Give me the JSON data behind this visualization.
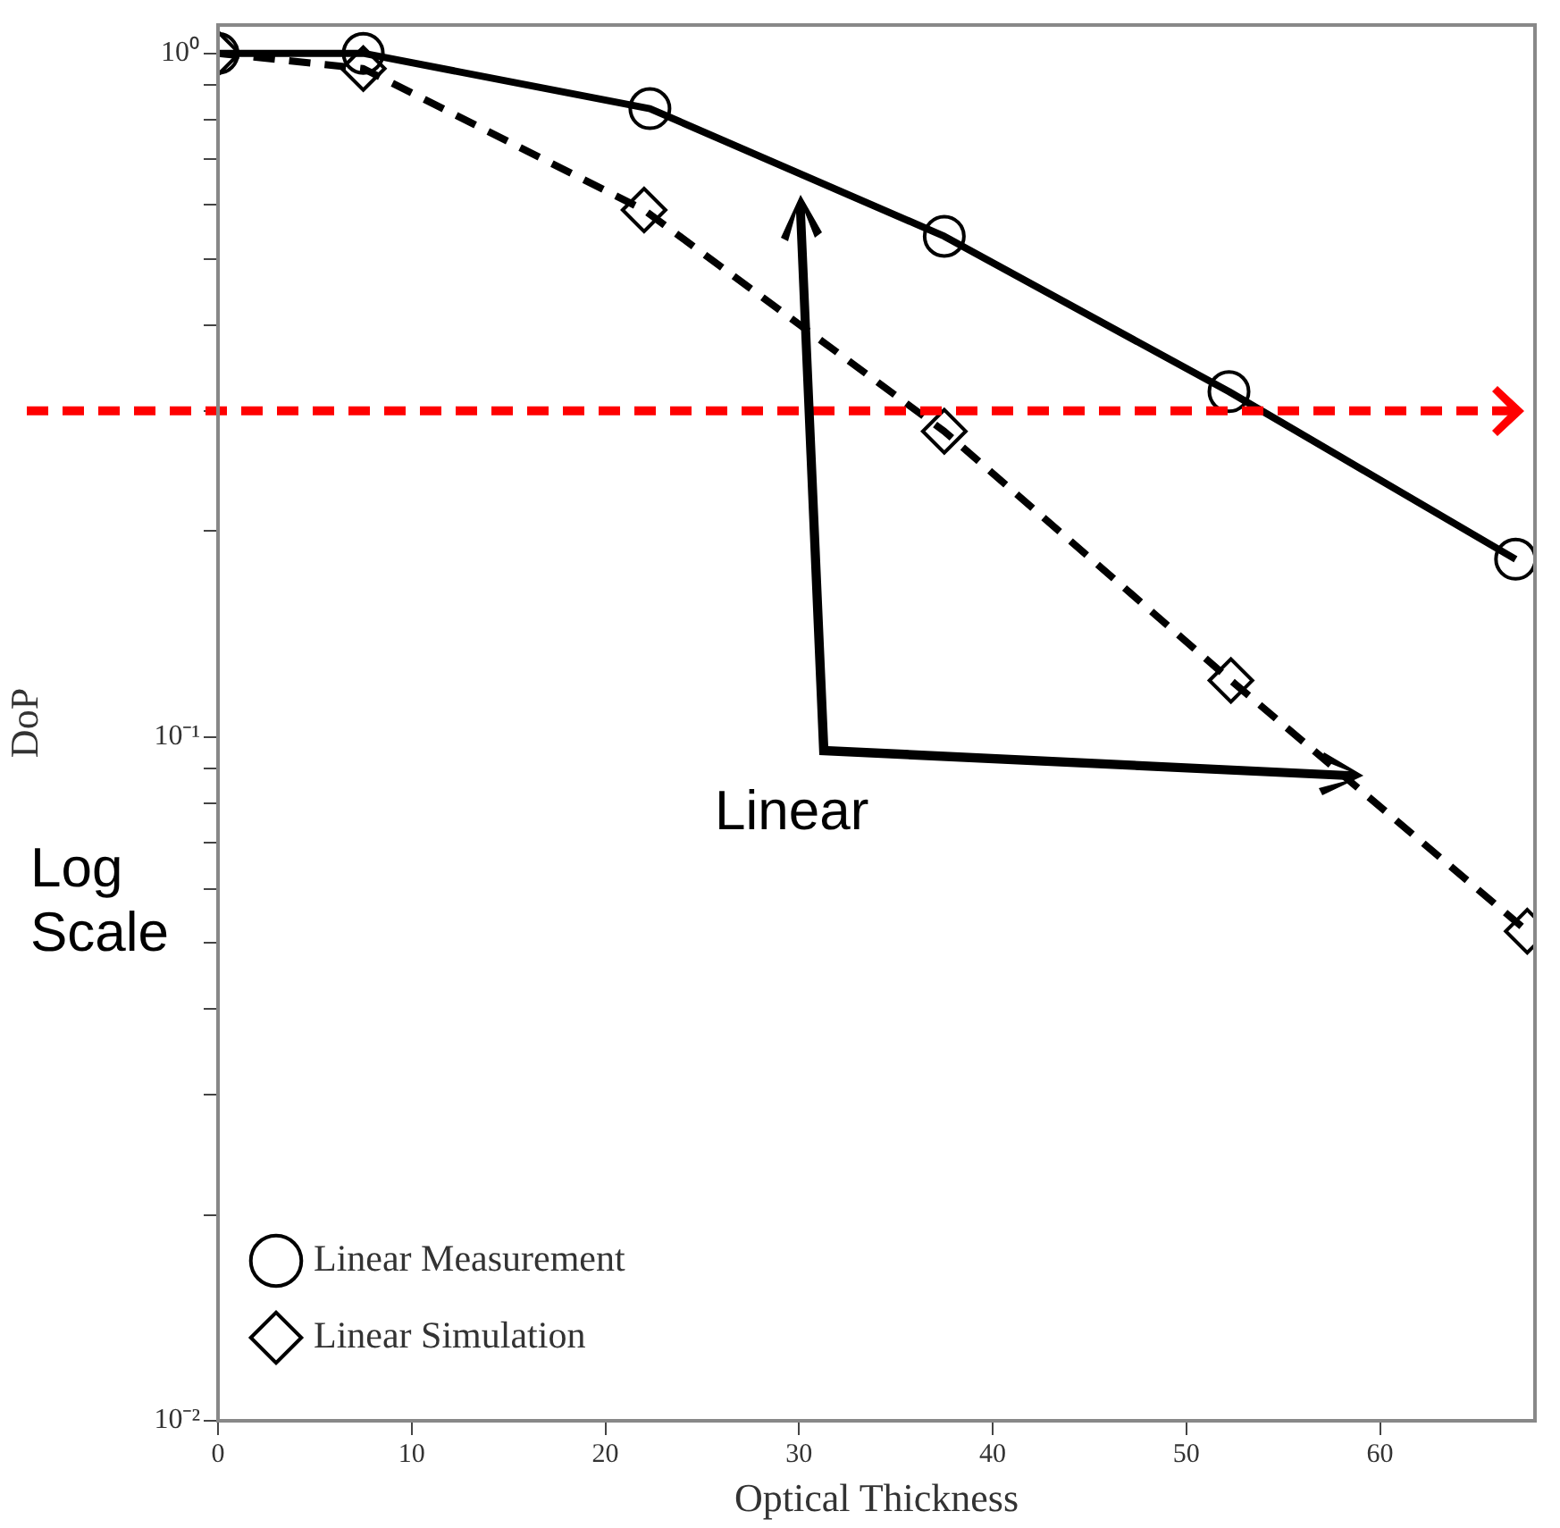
{
  "chart_data": {
    "type": "line",
    "xlabel": "Optical Thickness",
    "ylabel": "DoP",
    "series": [
      {
        "name": "Linear Measurement",
        "color": "#000000",
        "marker": "circle",
        "line_style": "solid",
        "x": [
          0,
          7.5,
          22.3,
          37.5,
          52.2,
          67
        ],
        "values": [
          1,
          1,
          0.83,
          0.54,
          0.32,
          0.182
        ]
      },
      {
        "name": "Linear Simulation",
        "color": "#000000",
        "marker": "diamond",
        "line_style": "dashed",
        "x": [
          0,
          7.5,
          22,
          37.5,
          52.3,
          67.6
        ],
        "values": [
          1,
          0.95,
          0.59,
          0.28,
          0.121,
          0.052
        ]
      }
    ],
    "xlim": [
      0,
      68
    ],
    "xticks": [
      0,
      10,
      20,
      30,
      40,
      50,
      60
    ],
    "ylim": [
      0.01,
      1.1
    ],
    "yticks": [
      {
        "value": 0.01,
        "label": "10⁻²"
      },
      {
        "value": 0.02,
        "label": null
      },
      {
        "value": 0.03,
        "label": null
      },
      {
        "value": 0.04,
        "label": null
      },
      {
        "value": 0.05,
        "label": null
      },
      {
        "value": 0.06,
        "label": null
      },
      {
        "value": 0.07,
        "label": null
      },
      {
        "value": 0.08,
        "label": null
      },
      {
        "value": 0.09,
        "label": null
      },
      {
        "value": 0.1,
        "label": "10⁻¹"
      },
      {
        "value": 0.2,
        "label": null
      },
      {
        "value": 0.3,
        "label": null
      },
      {
        "value": 0.4,
        "label": null
      },
      {
        "value": 0.5,
        "label": null
      },
      {
        "value": 0.6,
        "label": null
      },
      {
        "value": 0.7,
        "label": null
      },
      {
        "value": 0.8,
        "label": null
      },
      {
        "value": 0.9,
        "label": null
      },
      {
        "value": 1,
        "label": "10⁰"
      }
    ],
    "log": "y",
    "grid": false,
    "legend": "bottom left",
    "ref_lines": [
      {
        "axis": "y",
        "value": 0.3,
        "color": "#ff0000",
        "line_style": "dashed"
      }
    ],
    "annotations": [
      "Linear",
      "Log Scale"
    ]
  }
}
